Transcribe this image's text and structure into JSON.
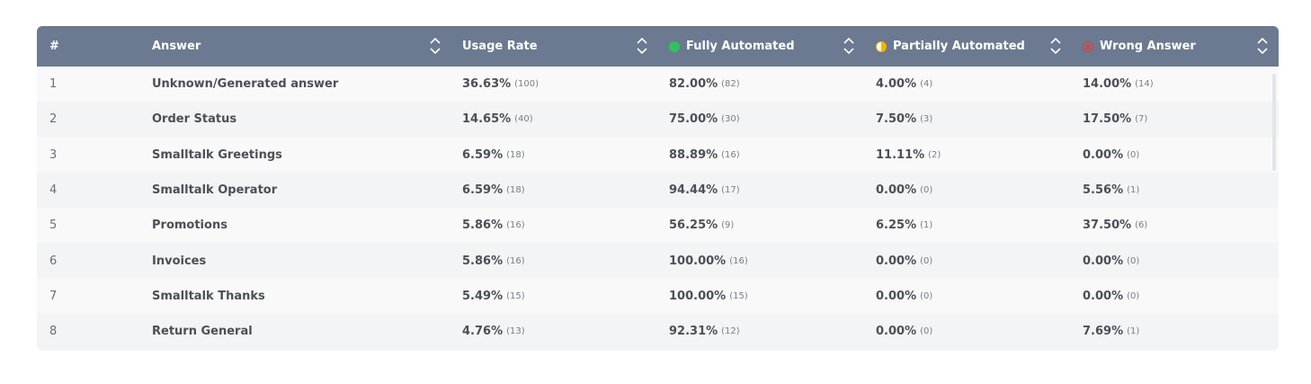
{
  "table": {
    "headers": {
      "index": "#",
      "answer": "Answer",
      "usage": "Usage Rate",
      "fully": "Fully Automated",
      "partial": "Partially Automated",
      "wrong": "Wrong Answer"
    },
    "colors": {
      "header_bg": "#6b7a90",
      "fully": "#2fc25b",
      "partial": "#f5b400",
      "wrong": "#e03b3b"
    },
    "rows": [
      {
        "index": "1",
        "answer": "Unknown/Generated answer",
        "usage": "36.63%",
        "usage_count": "(100)",
        "fully": "82.00%",
        "fully_count": "(82)",
        "partial": "4.00%",
        "partial_count": "(4)",
        "wrong": "14.00%",
        "wrong_count": "(14)"
      },
      {
        "index": "2",
        "answer": "Order Status",
        "usage": "14.65%",
        "usage_count": "(40)",
        "fully": "75.00%",
        "fully_count": "(30)",
        "partial": "7.50%",
        "partial_count": "(3)",
        "wrong": "17.50%",
        "wrong_count": "(7)"
      },
      {
        "index": "3",
        "answer": "Smalltalk Greetings",
        "usage": "6.59%",
        "usage_count": "(18)",
        "fully": "88.89%",
        "fully_count": "(16)",
        "partial": "11.11%",
        "partial_count": "(2)",
        "wrong": "0.00%",
        "wrong_count": "(0)"
      },
      {
        "index": "4",
        "answer": "Smalltalk Operator",
        "usage": "6.59%",
        "usage_count": "(18)",
        "fully": "94.44%",
        "fully_count": "(17)",
        "partial": "0.00%",
        "partial_count": "(0)",
        "wrong": "5.56%",
        "wrong_count": "(1)"
      },
      {
        "index": "5",
        "answer": "Promotions",
        "usage": "5.86%",
        "usage_count": "(16)",
        "fully": "56.25%",
        "fully_count": "(9)",
        "partial": "6.25%",
        "partial_count": "(1)",
        "wrong": "37.50%",
        "wrong_count": "(6)"
      },
      {
        "index": "6",
        "answer": "Invoices",
        "usage": "5.86%",
        "usage_count": "(16)",
        "fully": "100.00%",
        "fully_count": "(16)",
        "partial": "0.00%",
        "partial_count": "(0)",
        "wrong": "0.00%",
        "wrong_count": "(0)"
      },
      {
        "index": "7",
        "answer": "Smalltalk Thanks",
        "usage": "5.49%",
        "usage_count": "(15)",
        "fully": "100.00%",
        "fully_count": "(15)",
        "partial": "0.00%",
        "partial_count": "(0)",
        "wrong": "0.00%",
        "wrong_count": "(0)"
      },
      {
        "index": "8",
        "answer": "Return General",
        "usage": "4.76%",
        "usage_count": "(13)",
        "fully": "92.31%",
        "fully_count": "(12)",
        "partial": "0.00%",
        "partial_count": "(0)",
        "wrong": "7.69%",
        "wrong_count": "(1)"
      }
    ]
  }
}
